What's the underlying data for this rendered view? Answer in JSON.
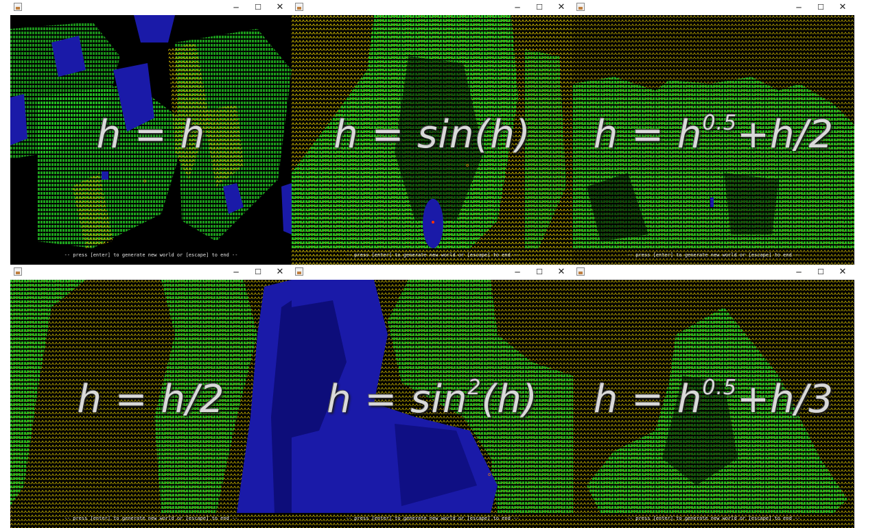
{
  "panels": [
    {
      "formula_main": "h = h",
      "formula_sup": "",
      "formula_tail": "",
      "footer": "-- press [enter] to generate new world or [escape] to end --",
      "marker": "o"
    },
    {
      "formula_main": "h = sin(h)",
      "formula_sup": "",
      "formula_tail": "",
      "footer": "-- press [enter] to generate new world or [escape] to end --",
      "marker": "o"
    },
    {
      "formula_main": "h = h",
      "formula_sup": "0.5",
      "formula_tail": "+h/2",
      "footer": "-- press [enter] to generate new world or [escape] to end --",
      "marker": "o"
    },
    {
      "formula_main": "h = h/2",
      "formula_sup": "",
      "formula_tail": "",
      "footer": "-- press [enter] to generate new world or [escape] to end --",
      "marker": "o"
    },
    {
      "formula_main": "h = sin",
      "formula_sup": "2",
      "formula_tail": "(h)",
      "footer": "-- press [enter] to generate new world or [escape] to end --",
      "marker": "o"
    },
    {
      "formula_main": "h = h",
      "formula_sup": "0.5",
      "formula_tail": "+h/3",
      "footer": "-- press [enter] to generate new world or [escape] to end --",
      "marker": "o"
    }
  ],
  "window_controls": {
    "minimize": "─",
    "maximize": "☐",
    "close": "✕"
  },
  "colors": {
    "land_green": "#22c022",
    "land_dark_green": "#128012",
    "water_blue": "#1a1aa8",
    "water_dark_blue": "#0d0d7a",
    "mountain_yellow": "#c8b400",
    "marker_orange": "#ff8800",
    "background": "#000000"
  },
  "icons": {
    "app": "java-app-icon"
  }
}
